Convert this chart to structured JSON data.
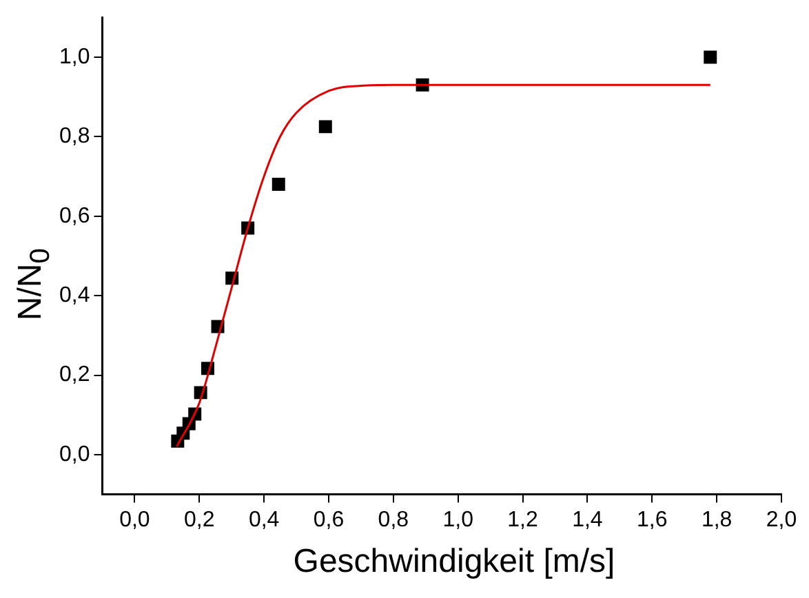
{
  "chart_data": {
    "type": "scatter",
    "xlabel": "Geschwindigkeit [m/s]",
    "ylabel": "N/N$_{0}$",
    "marker": "square",
    "grid": false,
    "legend": false,
    "xlim": [
      -0.1,
      2.0
    ],
    "ylim": [
      -0.1,
      1.1
    ],
    "xticks": [
      {
        "value": 0,
        "label": "0,0"
      },
      {
        "value": 0.2,
        "label": "0,2"
      },
      {
        "value": 0.4,
        "label": "0,4"
      },
      {
        "value": 0.6,
        "label": "0,6"
      },
      {
        "value": 0.8,
        "label": "0,8"
      },
      {
        "value": 1.0,
        "label": "1,0"
      },
      {
        "value": 1.2,
        "label": "1,2"
      },
      {
        "value": 1.4,
        "label": "1,4"
      },
      {
        "value": 1.6,
        "label": "1,6"
      },
      {
        "value": 1.8,
        "label": "1,8"
      },
      {
        "value": 2.0,
        "label": "2,0"
      }
    ],
    "yticks": [
      {
        "value": 0,
        "label": "0,0"
      },
      {
        "value": 0.2,
        "label": "0,2"
      },
      {
        "value": 0.4,
        "label": "0,4"
      },
      {
        "value": 0.6,
        "label": "0,6"
      },
      {
        "value": 0.8,
        "label": "0,8"
      },
      {
        "value": 1.0,
        "label": "1,0"
      }
    ],
    "series": [
      {
        "color": "#000000",
        "x": [
          0.133,
          0.15,
          0.168,
          0.186,
          0.204,
          0.226,
          0.257,
          0.301,
          0.35,
          0.445,
          0.59,
          0.89,
          1.78
        ],
        "values": [
          0.034,
          0.054,
          0.078,
          0.102,
          0.156,
          0.217,
          0.322,
          0.444,
          0.57,
          0.68,
          0.825,
          0.93,
          1.0
        ]
      },
      {
        "type": "line",
        "color": "#e00000",
        "marker": "none",
        "line_style": "solid",
        "x": [
          0.13,
          0.2,
          0.25,
          0.3,
          0.35,
          0.4,
          0.45,
          0.5,
          0.6,
          0.7,
          0.8,
          1.0,
          1.78
        ],
        "values": [
          0.02,
          0.13,
          0.27,
          0.42,
          0.57,
          0.7,
          0.8,
          0.86,
          0.915,
          0.928,
          0.93,
          0.93,
          0.93
        ]
      }
    ]
  }
}
